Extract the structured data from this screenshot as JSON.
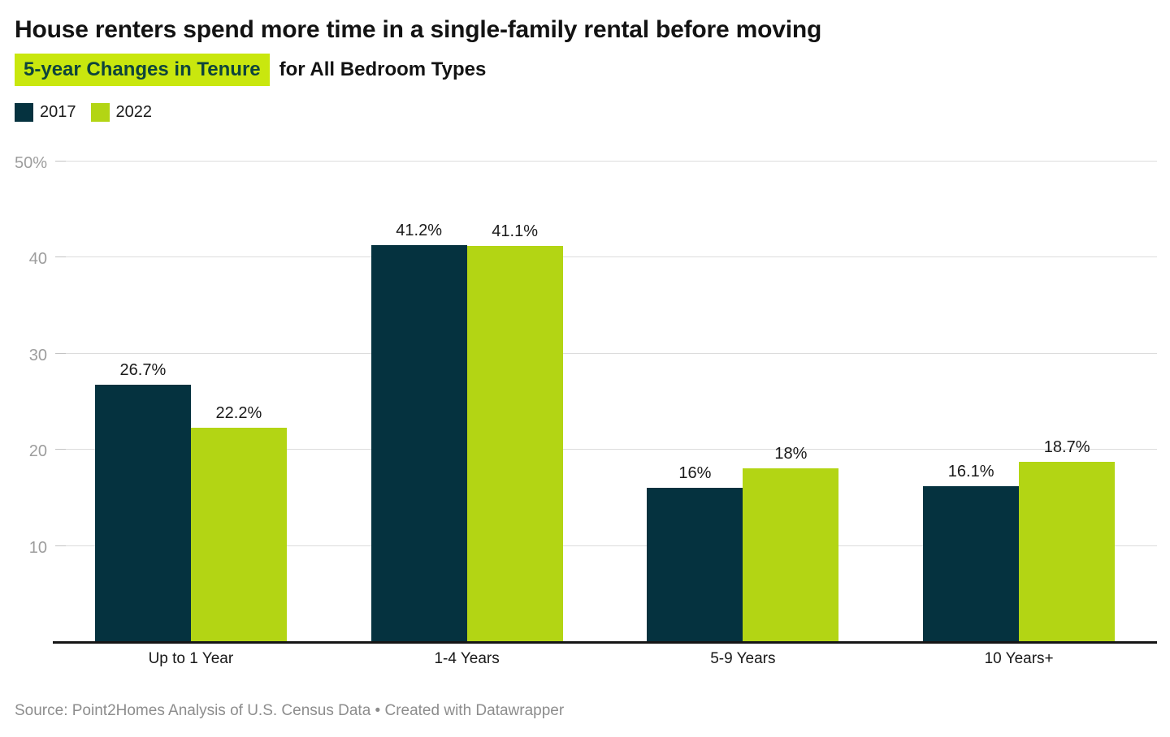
{
  "header": {
    "title": "House renters spend more time in a single-family rental before moving",
    "subtitle_highlight": "5-year Changes in Tenure",
    "subtitle_rest": "for All Bedroom Types"
  },
  "legend": [
    {
      "label": "2017",
      "color": "#05323F"
    },
    {
      "label": "2022",
      "color": "#B3D514"
    }
  ],
  "chart_data": {
    "type": "bar",
    "title": "House renters spend more time in a single-family rental before moving",
    "subtitle": "5-year Changes in Tenure for All Bedroom Types",
    "categories": [
      "Up to 1 Year",
      "1-4 Years",
      "5-9 Years",
      "10 Years+"
    ],
    "series": [
      {
        "name": "2017",
        "color": "#05323F",
        "values": [
          26.7,
          41.2,
          16,
          16.1
        ],
        "value_labels": [
          "26.7%",
          "41.2%",
          "16%",
          "16.1%"
        ]
      },
      {
        "name": "2022",
        "color": "#B3D514",
        "values": [
          22.2,
          41.1,
          18,
          18.7
        ],
        "value_labels": [
          "22.2%",
          "41.1%",
          "18%",
          "18.7%"
        ]
      }
    ],
    "xlabel": "",
    "ylabel": "",
    "ylim": [
      0,
      50
    ],
    "y_ticks": [
      {
        "value": 10,
        "label": "10"
      },
      {
        "value": 20,
        "label": "20"
      },
      {
        "value": 30,
        "label": "30"
      },
      {
        "value": 40,
        "label": "40"
      },
      {
        "value": 50,
        "label": "50%"
      }
    ],
    "grid": true,
    "legend_position": "top-left"
  },
  "colors": {
    "bar_2017": "#05323F",
    "bar_2022": "#B3D514",
    "subtitle_highlight_bg": "#C9E70E",
    "subtitle_highlight_text": "#0E443C",
    "gridline": "#dcdcdc",
    "axis_line": "#161616",
    "tick_text": "#9d9d9d"
  },
  "footer": {
    "source": "Source: Point2Homes Analysis of U.S. Census Data • Created with Datawrapper"
  }
}
